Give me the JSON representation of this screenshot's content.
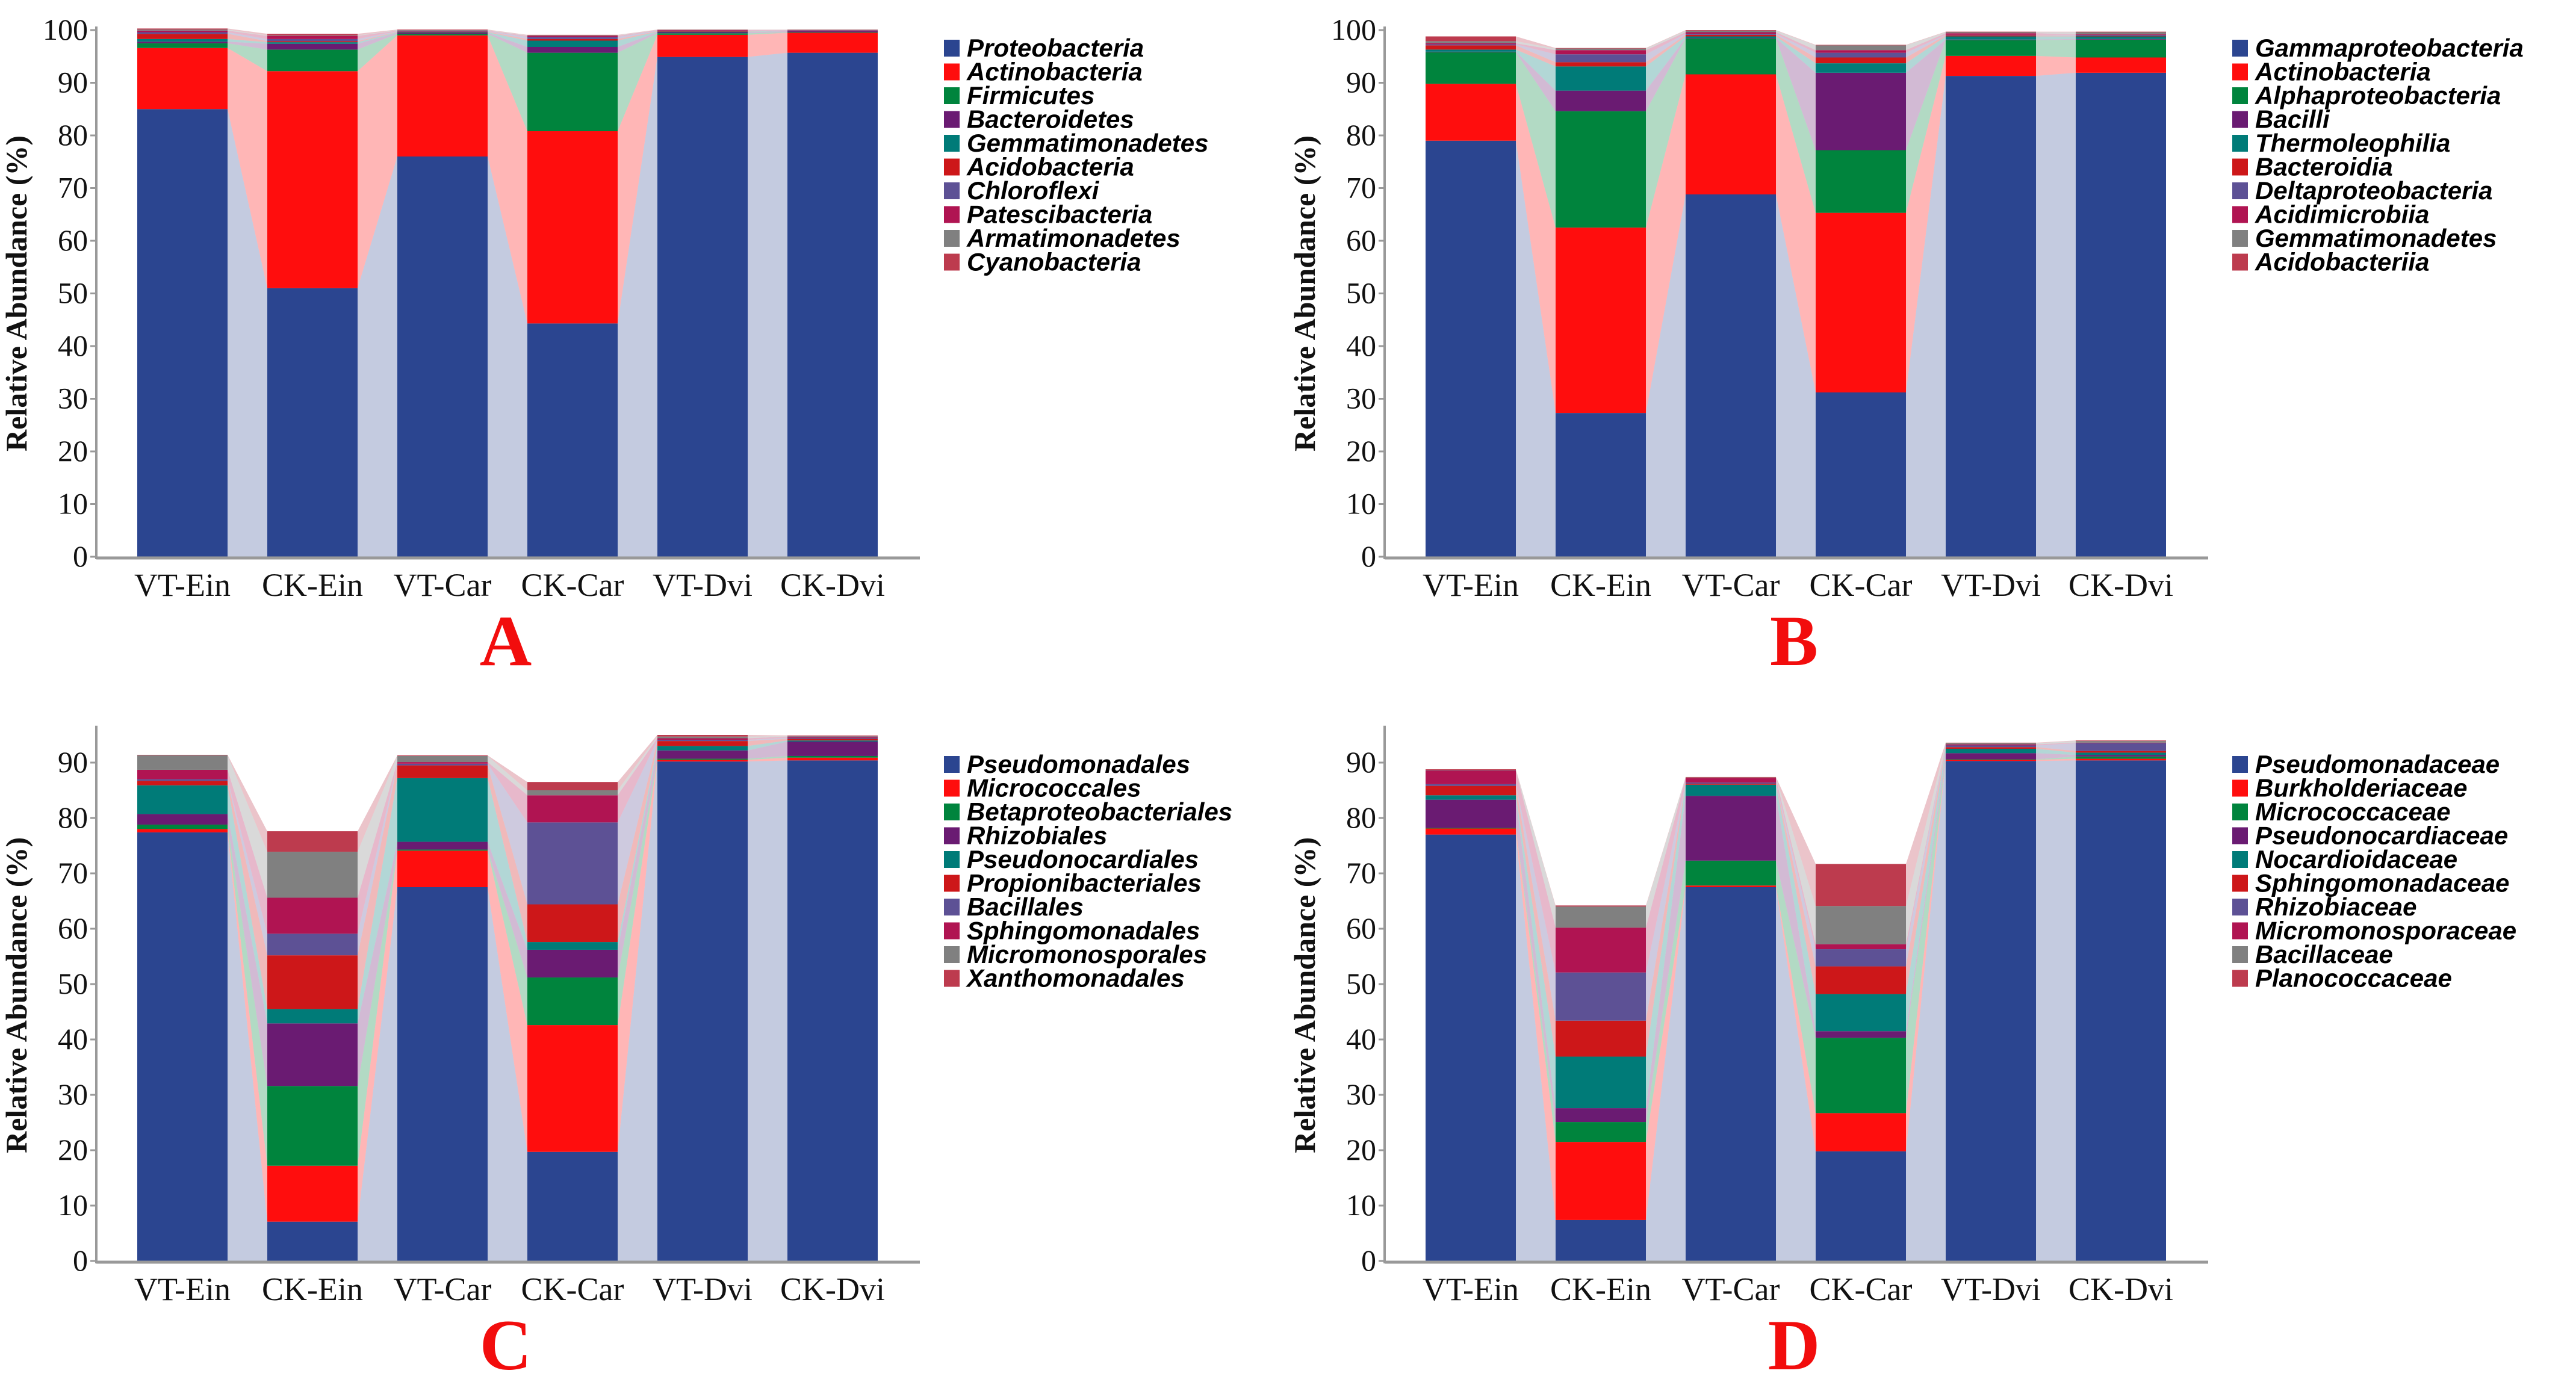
{
  "colors": [
    "#2b4590",
    "#ff0d0d",
    "#00843d",
    "#6a1b72",
    "#007b78",
    "#cd1719",
    "#5d5195",
    "#b01452",
    "#808080",
    "#bd3b4e"
  ],
  "chart_data": [
    {
      "type": "bar",
      "stacked": true,
      "panel_label": "A",
      "ylabel": "Relative Abundance (%)",
      "xlabel": "",
      "ylim": [
        0,
        100
      ],
      "yticks": [
        0,
        10,
        20,
        30,
        40,
        50,
        60,
        70,
        80,
        90,
        100
      ],
      "legend_position": "right",
      "categories": [
        "VT-Ein",
        "CK-Ein",
        "VT-Car",
        "CK-Car",
        "VT-Dvi",
        "CK-Dvi"
      ],
      "series": [
        {
          "name": "Proteobacteria",
          "values": [
            85.0,
            51.0,
            76.0,
            44.3,
            94.9,
            95.7
          ]
        },
        {
          "name": "Actinobacteria",
          "values": [
            11.6,
            41.2,
            23.0,
            36.5,
            4.2,
            3.8
          ]
        },
        {
          "name": "Firmicutes",
          "values": [
            0.9,
            4.1,
            0.3,
            14.9,
            0.3,
            0.1
          ]
        },
        {
          "name": "Bacteroidetes",
          "values": [
            0.3,
            1.1,
            0.2,
            1.1,
            0.2,
            0.2
          ]
        },
        {
          "name": "Gemmatimonadetes",
          "values": [
            0.5,
            0.3,
            0.1,
            1.2,
            0.1,
            0.05
          ]
        },
        {
          "name": "Acidobacteria",
          "values": [
            1.0,
            0.2,
            0.1,
            0.3,
            0.1,
            0.05
          ]
        },
        {
          "name": "Chloroflexi",
          "values": [
            0.3,
            0.4,
            0.1,
            0.4,
            0.1,
            0.05
          ]
        },
        {
          "name": "Patescibacteria",
          "values": [
            0.3,
            0.6,
            0.1,
            0.2,
            0.1,
            0.05
          ]
        },
        {
          "name": "Armatimonadetes",
          "values": [
            0.2,
            0.1,
            0.1,
            0.1,
            0.05,
            0.05
          ]
        },
        {
          "name": "Cyanobacteria",
          "values": [
            0.2,
            0.3,
            0.1,
            0.1,
            0.05,
            0.05
          ]
        }
      ]
    },
    {
      "type": "bar",
      "stacked": true,
      "panel_label": "B",
      "ylabel": "Relative Abundance (%)",
      "xlabel": "",
      "ylim": [
        0,
        100
      ],
      "yticks": [
        0,
        10,
        20,
        30,
        40,
        50,
        60,
        70,
        80,
        90,
        100
      ],
      "legend_position": "right",
      "categories": [
        "VT-Ein",
        "CK-Ein",
        "VT-Car",
        "CK-Car",
        "VT-Dvi",
        "CK-Dvi"
      ],
      "series": [
        {
          "name": "Gammaproteobacteria",
          "values": [
            79.0,
            27.3,
            68.8,
            31.2,
            91.3,
            91.9
          ]
        },
        {
          "name": "Actinobacteria",
          "values": [
            10.8,
            35.2,
            22.8,
            34.1,
            3.8,
            2.9
          ]
        },
        {
          "name": "Alphaproteobacteria",
          "values": [
            6.0,
            22.1,
            6.8,
            11.9,
            3.0,
            3.4
          ]
        },
        {
          "name": "Bacilli",
          "values": [
            0.1,
            3.9,
            0.1,
            14.7,
            0.1,
            0.1
          ]
        },
        {
          "name": "Thermoleophilia",
          "values": [
            0.4,
            4.6,
            0.3,
            1.8,
            0.6,
            0.5
          ]
        },
        {
          "name": "Bacteroidia",
          "values": [
            0.8,
            0.8,
            0.3,
            1.1,
            0.2,
            0.1
          ]
        },
        {
          "name": "Deltaproteobacteria",
          "values": [
            0.2,
            1.5,
            0.2,
            0.9,
            0.1,
            0.2
          ]
        },
        {
          "name": "Acidimicrobiia",
          "values": [
            0.2,
            0.8,
            0.3,
            0.5,
            0.3,
            0.1
          ]
        },
        {
          "name": "Gemmatimonadetes",
          "values": [
            0.4,
            0.3,
            0.3,
            0.9,
            0.2,
            0.4
          ]
        },
        {
          "name": "Acidobacteriia",
          "values": [
            0.9,
            0.1,
            0.1,
            0.1,
            0.1,
            0.1
          ]
        }
      ]
    },
    {
      "type": "bar",
      "stacked": true,
      "panel_label": "C",
      "ylabel": "Relative Abundance (%)",
      "xlabel": "",
      "ylim": [
        0,
        96
      ],
      "yticks": [
        0,
        10,
        20,
        30,
        40,
        50,
        60,
        70,
        80,
        90
      ],
      "legend_position": "right",
      "categories": [
        "VT-Ein",
        "CK-Ein",
        "VT-Car",
        "CK-Car",
        "VT-Dvi",
        "CK-Dvi"
      ],
      "series": [
        {
          "name": "Pseudomonadales",
          "values": [
            77.4,
            7.1,
            67.5,
            19.7,
            90.2,
            90.4
          ]
        },
        {
          "name": "Micrococcales",
          "values": [
            0.6,
            10.1,
            6.6,
            22.9,
            0.3,
            0.5
          ]
        },
        {
          "name": "Betaproteobacteriales",
          "values": [
            0.8,
            14.4,
            0.2,
            8.6,
            0.2,
            0.3
          ]
        },
        {
          "name": "Rhizobiales",
          "values": [
            1.9,
            11.3,
            1.4,
            5.0,
            1.5,
            2.6
          ]
        },
        {
          "name": "Pseudonocardiales",
          "values": [
            5.2,
            2.6,
            11.5,
            1.4,
            0.8,
            0.2
          ]
        },
        {
          "name": "Propionibacteriales",
          "values": [
            0.8,
            9.7,
            2.3,
            6.8,
            0.9,
            0.3
          ]
        },
        {
          "name": "Bacillales",
          "values": [
            0.3,
            3.9,
            0.3,
            14.8,
            0.2,
            0.2
          ]
        },
        {
          "name": "Sphingomonadales",
          "values": [
            1.7,
            6.5,
            0.3,
            4.9,
            0.3,
            0.2
          ]
        },
        {
          "name": "Micromonosporales",
          "values": [
            2.6,
            8.3,
            1.1,
            0.9,
            0.3,
            0.1
          ]
        },
        {
          "name": "Xanthomonadales",
          "values": [
            0.1,
            3.7,
            0.1,
            1.5,
            0.3,
            0.1
          ]
        }
      ]
    },
    {
      "type": "bar",
      "stacked": true,
      "panel_label": "D",
      "ylabel": "Relative Abundance (%)",
      "xlabel": "",
      "ylim": [
        0,
        96
      ],
      "yticks": [
        0,
        10,
        20,
        30,
        40,
        50,
        60,
        70,
        80,
        90
      ],
      "legend_position": "right",
      "categories": [
        "VT-Ein",
        "CK-Ein",
        "VT-Car",
        "CK-Car",
        "VT-Dvi",
        "CK-Dvi"
      ],
      "series": [
        {
          "name": "Pseudomonadaceae",
          "values": [
            77.0,
            7.4,
            67.5,
            19.8,
            90.3,
            90.4
          ]
        },
        {
          "name": "Burkholderiaceae",
          "values": [
            1.1,
            14.1,
            0.3,
            6.9,
            0.2,
            0.3
          ]
        },
        {
          "name": "Micrococcaceae",
          "values": [
            0.1,
            3.6,
            4.5,
            13.6,
            0.1,
            0.4
          ]
        },
        {
          "name": "Pseudonocardiaceae",
          "values": [
            5.1,
            2.5,
            11.7,
            1.2,
            1.1,
            0.3
          ]
        },
        {
          "name": "Nocardioidaceae",
          "values": [
            0.8,
            9.3,
            2.0,
            6.7,
            0.8,
            0.4
          ]
        },
        {
          "name": "Sphingomonadaceae",
          "values": [
            1.7,
            6.5,
            0.2,
            5.0,
            0.3,
            0.3
          ]
        },
        {
          "name": "Rhizobiaceae",
          "values": [
            0.3,
            8.7,
            0.2,
            3.1,
            0.3,
            1.4
          ]
        },
        {
          "name": "Micromonosporaceae",
          "values": [
            2.5,
            8.1,
            0.8,
            0.9,
            0.2,
            0.1
          ]
        },
        {
          "name": "Bacillaceae",
          "values": [
            0.1,
            3.8,
            0.1,
            6.9,
            0.2,
            0.3
          ]
        },
        {
          "name": "Planococcaceae",
          "values": [
            0.1,
            0.2,
            0.1,
            7.6,
            0.1,
            0.1
          ]
        }
      ]
    }
  ]
}
